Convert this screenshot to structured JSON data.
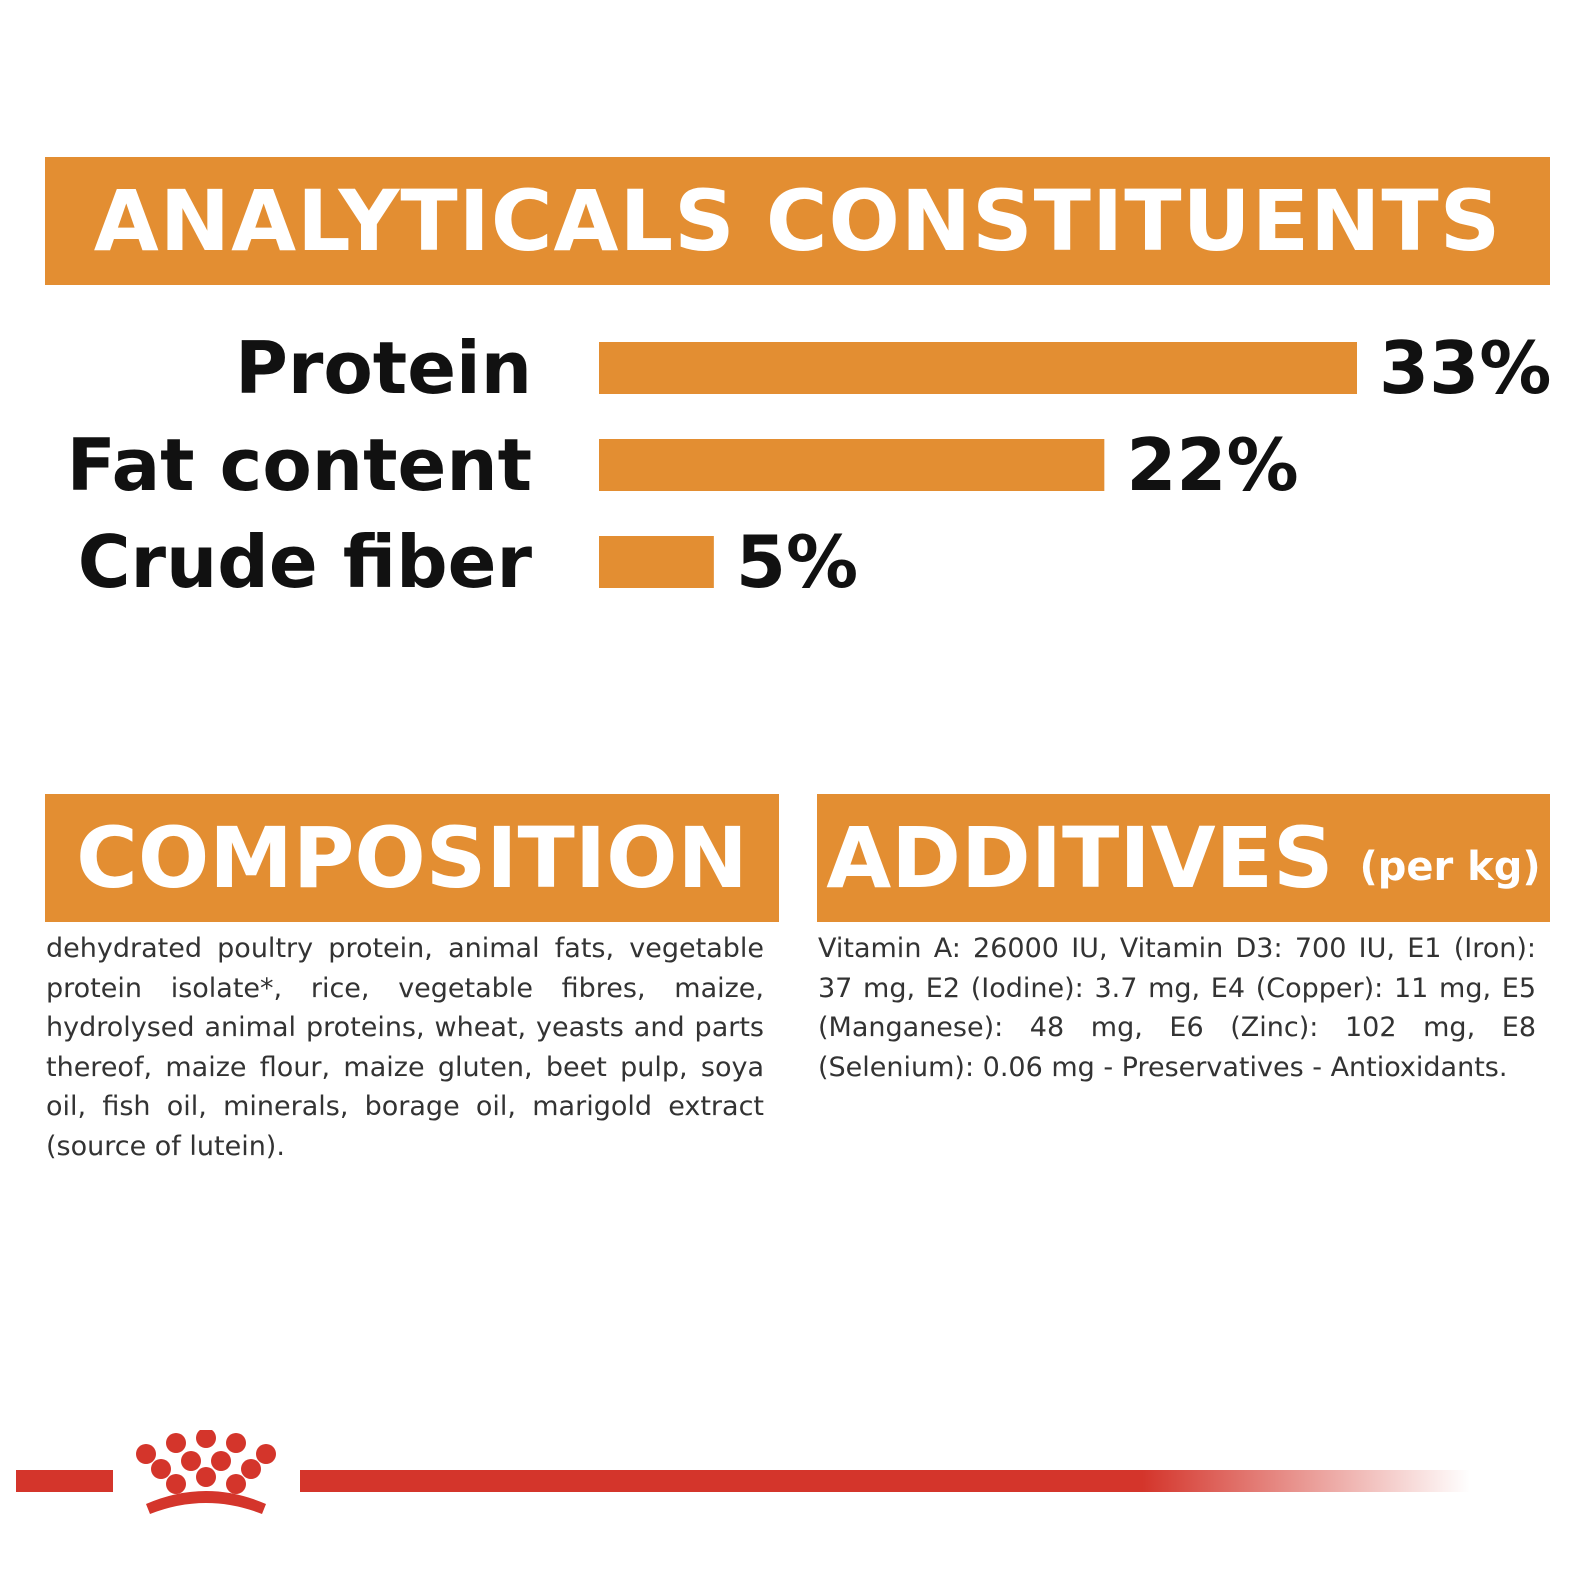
{
  "colors": {
    "accent": "#E38E32",
    "brand_red": "#D4352B",
    "text": "#111111"
  },
  "analytics": {
    "title": "ANALYTICALS CONSTITUENTS"
  },
  "chart_data": {
    "type": "bar",
    "categories": [
      "Protein",
      "Fat content",
      "Crude fiber"
    ],
    "values": [
      33,
      22,
      5
    ],
    "value_labels": [
      "33%",
      "22%",
      "5%"
    ],
    "unit": "%",
    "xlim": [
      0,
      33
    ],
    "grid": false,
    "legend": "none"
  },
  "composition": {
    "title": "COMPOSITION",
    "text": "dehydrated poultry protein, animal fats, vegetable protein isolate*, rice, vegetable fibres, maize, hydrolysed animal proteins, wheat, yeasts and parts thereof, maize flour, maize gluten, beet pulp, soya oil, fish oil, minerals, borage oil, marigold extract (source of lutein)."
  },
  "additives": {
    "title": "ADDITIVES",
    "subtitle": "(per kg)",
    "text": "Vitamin A: 26000 IU, Vitamin D3: 700 IU, E1 (Iron): 37 mg, E2 (Iodine): 3.7 mg, E4 (Copper): 11 mg, E5 (Manganese): 48 mg, E6 (Zinc): 102 mg, E8 (Selenium): 0.06 mg - Preservatives - Antioxidants."
  },
  "footer": {
    "logo_icon": "crown-icon"
  }
}
